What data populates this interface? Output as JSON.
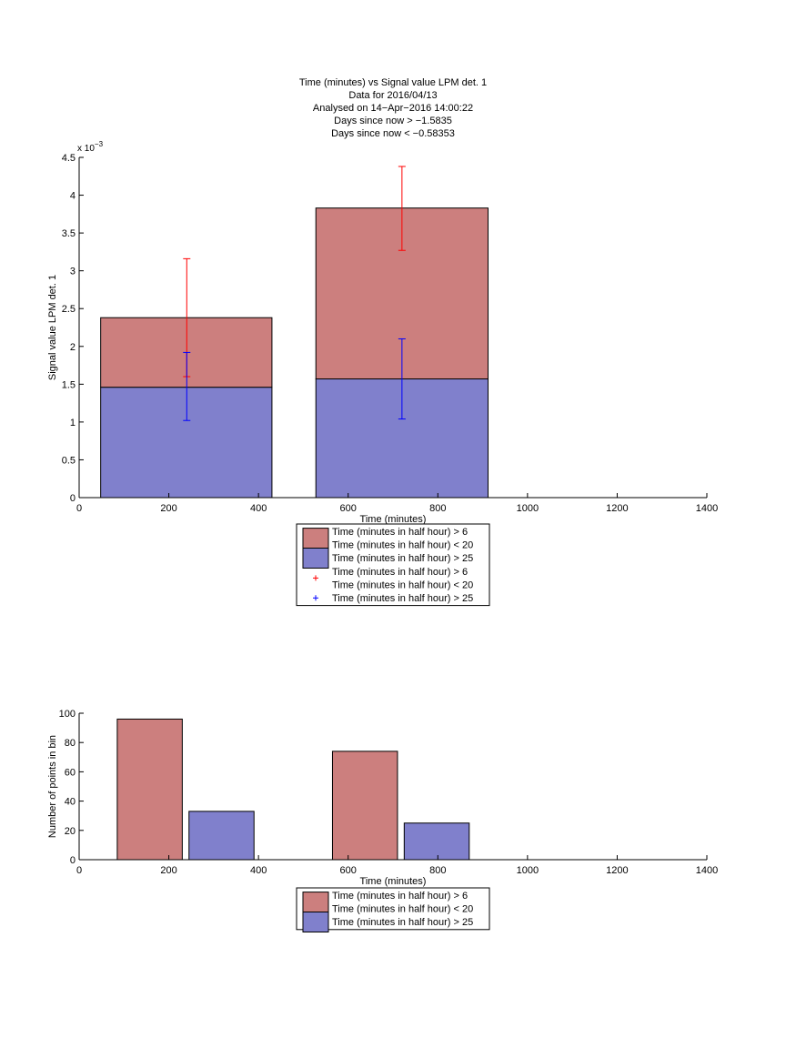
{
  "title_lines": [
    "Time (minutes) vs Signal value LPM det. 1",
    "Data for 2016/04/13",
    "Analysed on 14−Apr−2016 14:00:22",
    "Days since now > −1.5835",
    "Days since now < −0.58353"
  ],
  "colors": {
    "red_bar": "#cc7f7e",
    "blue_bar": "#8080cc",
    "red_error": "#ff0000",
    "blue_error": "#0000ff"
  },
  "chart_data": [
    {
      "type": "bar",
      "stacked": true,
      "xlabel": "Time (minutes)",
      "ylabel": "Signal value LPM det. 1",
      "y_exponent_label": "x 10",
      "y_exponent_power": "−3",
      "xlim": [
        0,
        1400
      ],
      "ylim": [
        0,
        4.5
      ],
      "y_scale": 0.001,
      "x_ticks": [
        "0",
        "200",
        "400",
        "600",
        "800",
        "1000",
        "1200",
        "1400"
      ],
      "y_ticks": [
        "0",
        "0.5",
        "1",
        "1.5",
        "2",
        "2.5",
        "3",
        "3.5",
        "4",
        "4.5"
      ],
      "bars": [
        {
          "x_start": 48,
          "x_end": 430,
          "blue_value": 1.46,
          "red_top": 2.38
        },
        {
          "x_start": 528,
          "x_end": 912,
          "blue_value": 1.57,
          "red_top": 3.83
        }
      ],
      "error_bars": [
        {
          "series": "red",
          "x": 240,
          "low": 1.6,
          "high": 3.16
        },
        {
          "series": "blue",
          "x": 240,
          "low": 1.02,
          "high": 1.92
        },
        {
          "series": "red",
          "x": 720,
          "low": 3.27,
          "high": 4.38
        },
        {
          "series": "blue",
          "x": 720,
          "low": 1.04,
          "high": 2.1
        }
      ],
      "legend": [
        {
          "kind": "patch",
          "color": "red",
          "lines": [
            "Time (minutes in half hour) > 6",
            "Time (minutes in half hour) < 20"
          ]
        },
        {
          "kind": "patch",
          "color": "blue",
          "lines": [
            "Time (minutes in half hour) > 25"
          ]
        },
        {
          "kind": "marker",
          "color": "red",
          "lines": [
            "Time (minutes in half hour) > 6",
            "Time (minutes in half hour) < 20"
          ]
        },
        {
          "kind": "marker",
          "color": "blue",
          "lines": [
            "Time (minutes in half hour) > 25"
          ]
        }
      ],
      "legend_placement": "below"
    },
    {
      "type": "bar",
      "xlabel": "Time (minutes)",
      "ylabel": "Number of points in bin",
      "xlim": [
        0,
        1400
      ],
      "ylim": [
        0,
        100
      ],
      "x_ticks": [
        "0",
        "200",
        "400",
        "600",
        "800",
        "1000",
        "1200",
        "1400"
      ],
      "y_ticks": [
        "0",
        "20",
        "40",
        "60",
        "80",
        "100"
      ],
      "bars": [
        {
          "series": "red",
          "x_start": 85,
          "x_end": 230,
          "value": 96
        },
        {
          "series": "blue",
          "x_start": 245,
          "x_end": 390,
          "value": 33
        },
        {
          "series": "red",
          "x_start": 565,
          "x_end": 710,
          "value": 74
        },
        {
          "series": "blue",
          "x_start": 725,
          "x_end": 870,
          "value": 25
        }
      ],
      "legend": [
        {
          "kind": "patch",
          "color": "red",
          "lines": [
            "Time (minutes in half hour) > 6",
            "Time (minutes in half hour) < 20"
          ]
        },
        {
          "kind": "patch",
          "color": "blue",
          "lines": [
            "Time (minutes in half hour) > 25"
          ]
        }
      ],
      "legend_placement": "below"
    }
  ]
}
